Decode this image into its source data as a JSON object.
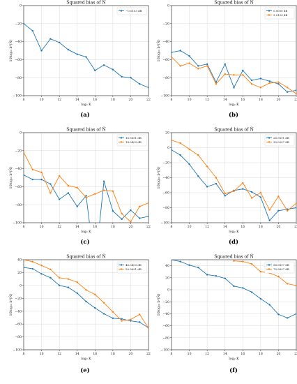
{
  "colors": {
    "series1": "#1f77b4",
    "series2": "#ff7f0e",
    "grid": "#d0d0d0"
  },
  "chart_data": [
    {
      "type": "line",
      "caption": "(a)",
      "title": "Squared bias of N̂",
      "xlabel": "log₂ K",
      "ylabel": "10log₁₀ b²(N̂)",
      "xlim": [
        8,
        22
      ],
      "ylim": [
        -100,
        0
      ],
      "xticks": [
        "8",
        "10",
        "12",
        "14",
        "16",
        "18",
        "20",
        "22"
      ],
      "yticks": [
        "0",
        "−20",
        "−40",
        "−60",
        "−80",
        "−100"
      ],
      "grid": true,
      "legend": "top-right",
      "series": [
        {
          "name": "−0.0103 dB",
          "x": [
            8,
            9,
            10,
            11,
            12,
            13,
            14,
            15,
            16,
            17,
            18,
            19,
            20,
            21,
            22
          ],
          "values": [
            -20,
            -28,
            -50,
            -37,
            -41,
            -49,
            -54,
            -57,
            -72,
            -66,
            -71,
            -79,
            -80,
            -87,
            -91
          ]
        }
      ]
    },
    {
      "type": "line",
      "caption": "(b)",
      "title": "Squared bias of N̂",
      "xlabel": "log₂ K",
      "ylabel": "10log₁₀ b²(N̂)",
      "xlim": [
        8,
        22
      ],
      "ylim": [
        -100,
        0
      ],
      "xticks": [
        "8",
        "10",
        "12",
        "14",
        "16",
        "18",
        "20",
        "22"
      ],
      "yticks": [
        "0",
        "−20",
        "−40",
        "−60",
        "−80",
        "−100"
      ],
      "grid": true,
      "legend": "top-right",
      "series": [
        {
          "name": "0.0000 dB",
          "x": [
            8,
            9,
            10,
            11,
            12,
            13,
            14,
            15,
            16,
            17,
            18,
            19,
            20,
            21,
            22
          ],
          "values": [
            -52,
            -50,
            -56,
            -67,
            -65,
            -85,
            -65,
            -91,
            -72,
            -83,
            -81,
            -84,
            -87,
            -96,
            -94
          ]
        },
        {
          "name": "3.0103 dB",
          "x": [
            8,
            9,
            10,
            11,
            12,
            13,
            14,
            15,
            16,
            17,
            18,
            19,
            20,
            21,
            22
          ],
          "values": [
            -57,
            -67,
            -64,
            -70,
            -67,
            -87,
            -76,
            -77,
            -77,
            -87,
            -91,
            -86,
            -85,
            -91,
            -98
          ]
        }
      ]
    },
    {
      "type": "line",
      "caption": "(c)",
      "title": "Squared bias of N̂",
      "xlabel": "log₂ K",
      "ylabel": "10log₁₀ b²(N̂)",
      "xlim": [
        8,
        22
      ],
      "ylim": [
        -100,
        0
      ],
      "xticks": [
        "8",
        "10",
        "12",
        "14",
        "16",
        "18",
        "20",
        "22"
      ],
      "yticks": [
        "0",
        "−20",
        "−40",
        "−60",
        "−80",
        "−100"
      ],
      "grid": true,
      "legend": "top-right",
      "series": [
        {
          "name": "16.9691 dB",
          "x": [
            8,
            9,
            10,
            11,
            12,
            13,
            14,
            15,
            16,
            17,
            18,
            19,
            20,
            21,
            22
          ],
          "values": [
            -47,
            -52,
            -52,
            -57,
            -74,
            -67,
            -82,
            -70,
            -150,
            -54,
            -87,
            -96,
            -86,
            -95,
            -93
          ]
        },
        {
          "name": "18.0403 dB",
          "x": [
            8,
            9,
            10,
            11,
            12,
            13,
            14,
            15,
            16,
            17,
            18,
            19,
            20,
            21,
            22
          ],
          "values": [
            -22,
            -41,
            -44,
            -67,
            -48,
            -59,
            -61,
            -72,
            -68,
            -64,
            -65,
            -90,
            -99,
            -82,
            -78
          ]
        }
      ]
    },
    {
      "type": "line",
      "caption": "(d)",
      "title": "Squared bias of N̂",
      "xlabel": "log₂ K",
      "ylabel": "10log₁₀ b²(N̂)",
      "xlim": [
        8,
        22
      ],
      "ylim": [
        -100,
        20
      ],
      "xticks": [
        "8",
        "10",
        "12",
        "14",
        "16",
        "18",
        "20",
        "22"
      ],
      "yticks": [
        "20",
        "0",
        "−20",
        "−40",
        "−60",
        "−80",
        "−100"
      ],
      "grid": true,
      "legend": "top-right",
      "series": [
        {
          "name": "26.9691 dB",
          "x": [
            8,
            9,
            10,
            11,
            12,
            13,
            14,
            15,
            16,
            17,
            18,
            19,
            20,
            21,
            22
          ],
          "values": [
            -3,
            -10,
            -22,
            -38,
            -52,
            -48,
            -64,
            -57,
            -55,
            -59,
            -66,
            -97,
            -84,
            -82,
            -80
          ]
        },
        {
          "name": "30.0007 dB",
          "x": [
            8,
            9,
            10,
            11,
            12,
            13,
            14,
            15,
            16,
            17,
            18,
            19,
            20,
            21,
            22
          ],
          "values": [
            10,
            6,
            -2,
            -10,
            -25,
            -40,
            -61,
            -58,
            -47,
            -67,
            -60,
            -83,
            -65,
            -84,
            -74
          ]
        }
      ]
    },
    {
      "type": "line",
      "caption": "(e)",
      "title": "Squared bias of N̂",
      "xlabel": "log₂ K",
      "ylabel": "10log₁₀ b²(N̂)",
      "xlim": [
        8,
        22
      ],
      "ylim": [
        -100,
        40
      ],
      "xticks": [
        "8",
        "10",
        "12",
        "14",
        "16",
        "18",
        "20",
        "22"
      ],
      "yticks": [
        "40",
        "20",
        "0",
        "−20",
        "−40",
        "−60",
        "−80",
        "−100"
      ],
      "grid": true,
      "legend": "top-right",
      "series": [
        {
          "name": "46.0403 dB",
          "x": [
            8,
            9,
            10,
            11,
            12,
            13,
            14,
            15,
            16,
            17,
            18,
            19,
            20,
            21,
            22
          ],
          "values": [
            28,
            26,
            18,
            12,
            0,
            -3,
            -12,
            -25,
            -35,
            -44,
            -51,
            -52,
            -55,
            -57,
            -66
          ]
        },
        {
          "name": "50.9691 dB",
          "x": [
            8,
            9,
            10,
            11,
            12,
            13,
            14,
            15,
            16,
            17,
            18,
            19,
            20,
            21,
            22
          ],
          "values": [
            40,
            37,
            31,
            25,
            12,
            10,
            5,
            -7,
            -14,
            -27,
            -41,
            -55,
            -53,
            -45,
            -66
          ]
        }
      ]
    },
    {
      "type": "line",
      "caption": "(f)",
      "title": "Squared bias of N̂",
      "xlabel": "log₂ K",
      "ylabel": "10log₁₀ b²(N̂)",
      "xlim": [
        8,
        22
      ],
      "ylim": [
        -100,
        50
      ],
      "xticks": [
        "8",
        "10",
        "12",
        "14",
        "16",
        "18",
        "20",
        "22"
      ],
      "yticks": [
        "40",
        "20",
        "0",
        "−20",
        "−40",
        "−60",
        "−80",
        "−100"
      ],
      "grid": true,
      "legend": "top-right",
      "series": [
        {
          "name": "56.9897 dB",
          "x": [
            8,
            9,
            10,
            11,
            12,
            13,
            14,
            15,
            16,
            17,
            18,
            19,
            20,
            21,
            22
          ],
          "values": [
            50,
            47,
            41,
            37,
            25,
            23,
            19,
            6,
            3,
            -4,
            -15,
            -25,
            -41,
            -47,
            -40
          ]
        },
        {
          "name": "70.9897 dB",
          "x": [
            8,
            9,
            10,
            11,
            12,
            13,
            14,
            15,
            16,
            17,
            18,
            19,
            20,
            21,
            22
          ],
          "values": [
            null,
            null,
            null,
            null,
            null,
            null,
            null,
            48,
            47,
            43,
            30,
            28,
            22,
            10,
            7
          ]
        }
      ]
    }
  ]
}
